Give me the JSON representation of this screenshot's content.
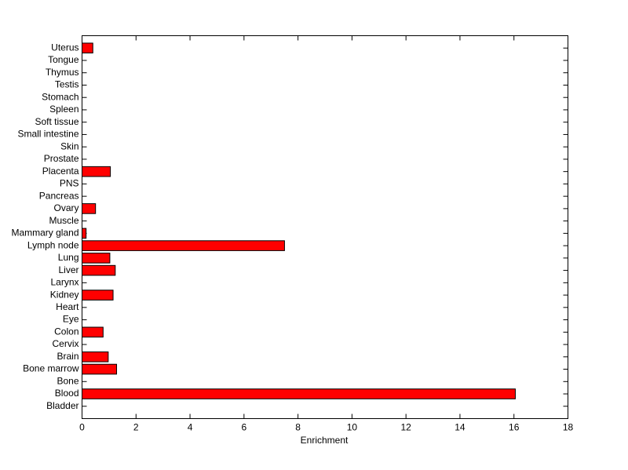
{
  "chart_data": {
    "type": "bar",
    "orientation": "horizontal",
    "xlabel": "Enrichment",
    "categories": [
      "Bladder",
      "Blood",
      "Bone",
      "Bone marrow",
      "Brain",
      "Cervix",
      "Colon",
      "Eye",
      "Heart",
      "Kidney",
      "Larynx",
      "Liver",
      "Lung",
      "Lymph node",
      "Mammary gland",
      "Muscle",
      "Ovary",
      "Pancreas",
      "PNS",
      "Placenta",
      "Prostate",
      "Skin",
      "Small intestine",
      "Soft tissue",
      "Spleen",
      "Stomach",
      "Testis",
      "Thymus",
      "Tongue",
      "Uterus"
    ],
    "values": [
      0,
      16.05,
      0,
      1.28,
      0.97,
      0,
      0.78,
      0,
      0,
      1.15,
      0,
      1.23,
      1.03,
      7.5,
      0.15,
      0,
      0.5,
      0,
      0,
      1.05,
      0,
      0,
      0,
      0,
      0,
      0,
      0,
      0,
      0,
      0.4
    ],
    "color": "#ff0000",
    "xlim": [
      0,
      18
    ],
    "xticks": [
      0,
      2,
      4,
      6,
      8,
      10,
      12,
      14,
      16,
      18
    ],
    "grid": false
  }
}
